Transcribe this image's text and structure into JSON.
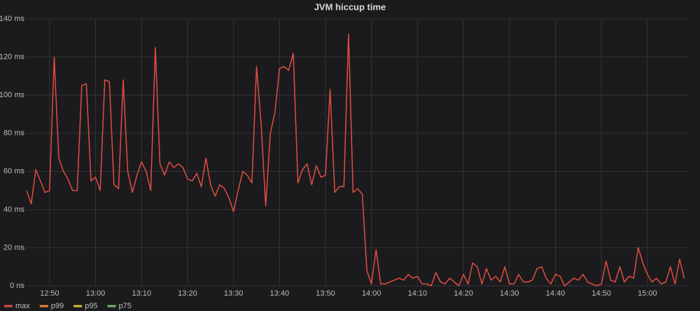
{
  "chart_data": {
    "type": "line",
    "title": "JVM hiccup time",
    "xlim": [
      "12:45",
      "15:09"
    ],
    "xticks": [
      "12:50",
      "13:00",
      "13:10",
      "13:20",
      "13:30",
      "13:40",
      "13:50",
      "14:00",
      "14:10",
      "14:20",
      "14:30",
      "14:40",
      "14:50",
      "15:00"
    ],
    "ylim": [
      0,
      140
    ],
    "yticks": [
      {
        "value": 0,
        "label": "0 ns"
      },
      {
        "value": 20,
        "label": "20 ms"
      },
      {
        "value": 40,
        "label": "40 ms"
      },
      {
        "value": 60,
        "label": "60 ms"
      },
      {
        "value": 80,
        "label": "80 ms"
      },
      {
        "value": 100,
        "label": "100 ms"
      },
      {
        "value": 120,
        "label": "120 ms"
      },
      {
        "value": 140,
        "label": "140 ms"
      }
    ],
    "grid": true,
    "legend": "bottom-left",
    "x": [
      "12:45",
      "12:46",
      "12:47",
      "12:48",
      "12:49",
      "12:50",
      "12:51",
      "12:52",
      "12:53",
      "12:54",
      "12:55",
      "12:56",
      "12:57",
      "12:58",
      "12:59",
      "13:00",
      "13:01",
      "13:02",
      "13:03",
      "13:04",
      "13:05",
      "13:06",
      "13:07",
      "13:08",
      "13:09",
      "13:10",
      "13:11",
      "13:12",
      "13:13",
      "13:14",
      "13:15",
      "13:16",
      "13:17",
      "13:18",
      "13:19",
      "13:20",
      "13:21",
      "13:22",
      "13:23",
      "13:24",
      "13:25",
      "13:26",
      "13:27",
      "13:28",
      "13:29",
      "13:30",
      "13:31",
      "13:32",
      "13:33",
      "13:34",
      "13:35",
      "13:36",
      "13:37",
      "13:38",
      "13:39",
      "13:40",
      "13:41",
      "13:42",
      "13:43",
      "13:44",
      "13:45",
      "13:46",
      "13:47",
      "13:48",
      "13:49",
      "13:50",
      "13:51",
      "13:52",
      "13:53",
      "13:54",
      "13:55",
      "13:56",
      "13:57",
      "13:58",
      "13:59",
      "14:00",
      "14:01",
      "14:02",
      "14:03",
      "14:04",
      "14:05",
      "14:06",
      "14:07",
      "14:08",
      "14:09",
      "14:10",
      "14:11",
      "14:12",
      "14:13",
      "14:14",
      "14:15",
      "14:16",
      "14:17",
      "14:18",
      "14:19",
      "14:20",
      "14:21",
      "14:22",
      "14:23",
      "14:24",
      "14:25",
      "14:26",
      "14:27",
      "14:28",
      "14:29",
      "14:30",
      "14:31",
      "14:32",
      "14:33",
      "14:34",
      "14:35",
      "14:36",
      "14:37",
      "14:38",
      "14:39",
      "14:40",
      "14:41",
      "14:42",
      "14:43",
      "14:44",
      "14:45",
      "14:46",
      "14:47",
      "14:48",
      "14:49",
      "14:50",
      "14:51",
      "14:52",
      "14:53",
      "14:54",
      "14:55",
      "14:56",
      "14:57",
      "14:58",
      "14:59",
      "15:00",
      "15:01",
      "15:02",
      "15:03",
      "15:04",
      "15:05",
      "15:06",
      "15:07",
      "15:08"
    ],
    "series": [
      {
        "name": "max",
        "color": "#e24d42",
        "values": [
          50,
          43,
          61,
          55,
          49,
          50,
          120,
          67,
          60,
          56,
          50,
          50,
          105,
          106,
          55,
          57,
          50,
          108,
          107,
          53,
          51,
          108,
          60,
          49,
          58,
          65,
          60,
          50,
          125,
          64,
          58,
          65,
          62,
          64,
          62,
          56,
          55,
          59,
          52,
          67,
          53,
          47,
          53,
          51,
          46,
          39,
          50,
          60,
          58,
          54,
          115,
          85,
          42,
          80,
          91,
          114,
          115,
          113,
          122,
          54,
          61,
          64,
          53,
          63,
          57,
          58,
          103,
          49,
          52,
          52,
          132,
          49,
          51,
          48,
          8,
          1,
          19,
          1,
          1,
          2,
          3,
          4,
          3,
          6,
          4,
          5,
          1,
          1,
          0,
          7,
          2,
          1,
          4,
          2,
          0,
          6,
          1,
          12,
          10,
          1,
          9,
          3,
          5,
          2,
          10,
          1,
          1,
          6,
          2,
          2,
          3,
          9,
          10,
          4,
          1,
          6,
          5,
          0,
          2,
          4,
          3,
          6,
          2,
          1,
          0,
          1,
          13,
          3,
          2,
          10,
          2,
          5,
          4,
          20,
          12,
          6,
          2,
          4,
          1,
          2,
          10,
          1,
          14,
          4
        ]
      },
      {
        "name": "p99",
        "color": "#ef843c"
      },
      {
        "name": "p95",
        "color": "#eab839"
      },
      {
        "name": "p75",
        "color": "#7eb26d"
      }
    ]
  }
}
